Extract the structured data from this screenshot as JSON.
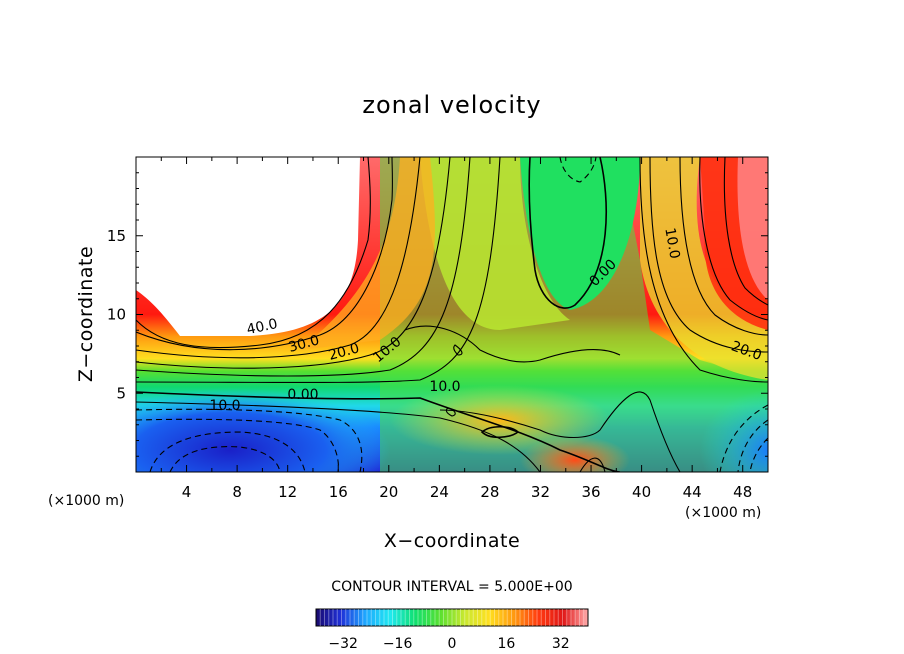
{
  "chart_data": {
    "type": "heatmap",
    "title": "zonal velocity",
    "xlabel": "X−coordinate",
    "ylabel": "Z−coordinate",
    "x_unit_label": "(×1000 m)",
    "z_unit_label": "(×1000 m)",
    "xlim": [
      0,
      50
    ],
    "ylim": [
      0,
      20
    ],
    "x_ticks": [
      4,
      8,
      12,
      16,
      20,
      24,
      28,
      32,
      36,
      40,
      44,
      48
    ],
    "y_ticks": [
      5,
      10,
      15
    ],
    "contour_interval_text": "CONTOUR INTERVAL = 5.000E+00",
    "contour_labels": [
      "40.0",
      "30.0",
      "20.0",
      "10.0",
      "0.00",
      "10.0",
      "10.0",
      "0.00",
      "10.0",
      "20.0"
    ],
    "colorbar": {
      "range": [
        -40,
        40
      ],
      "ticks": [
        "−32",
        "−16",
        "0",
        "16",
        "32"
      ],
      "tick_values": [
        -32,
        -16,
        0,
        16,
        32
      ],
      "colors": [
        "#1a0a6e",
        "#1f30d8",
        "#1fa8ff",
        "#20e8f0",
        "#10e070",
        "#58e030",
        "#c8e830",
        "#ffe020",
        "#ff9a10",
        "#ff3a10",
        "#e01818",
        "#ffaaaa"
      ]
    }
  }
}
